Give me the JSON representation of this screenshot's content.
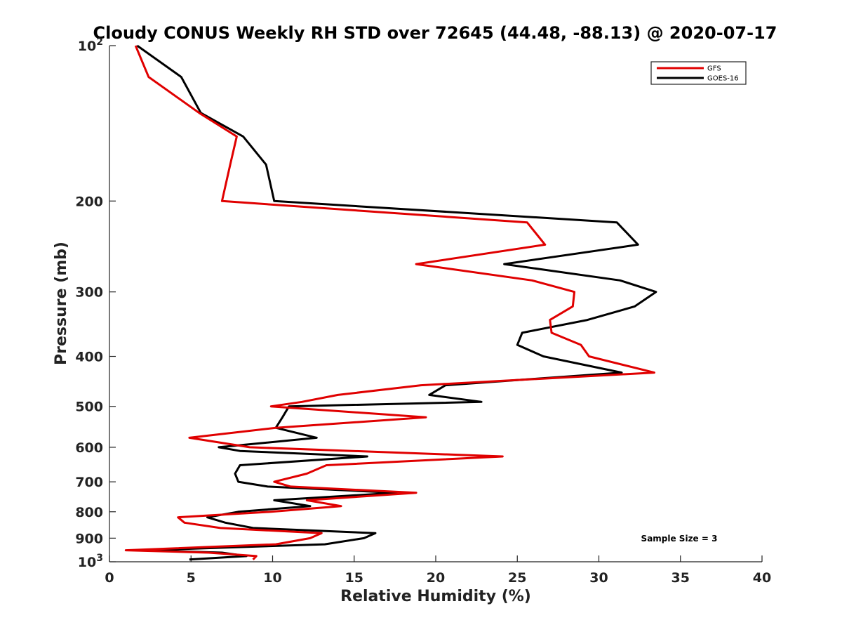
{
  "chart_data": {
    "type": "line",
    "title": "Cloudy CONUS Weekly RH STD over 72645 (44.48, -88.13) @ 2020-07-17",
    "xlabel": "Relative Humidity (%)",
    "ylabel": "Pressure (mb)",
    "xlim": [
      0,
      40
    ],
    "ylim": [
      100,
      1000
    ],
    "y_scale": "log",
    "y_reversed": true,
    "grid": false,
    "legend_position": "top-right",
    "x_ticks": [
      0,
      5,
      10,
      15,
      20,
      25,
      30,
      35,
      40
    ],
    "x_tick_labels": [
      "0",
      "5",
      "10",
      "15",
      "20",
      "25",
      "30",
      "35",
      "40"
    ],
    "y_ticks": [
      100,
      200,
      300,
      400,
      500,
      600,
      700,
      800,
      900,
      1000
    ],
    "y_tick_labels": [
      {
        "base": "10",
        "exp": "2"
      },
      {
        "base": "200",
        "exp": ""
      },
      {
        "base": "300",
        "exp": ""
      },
      {
        "base": "400",
        "exp": ""
      },
      {
        "base": "500",
        "exp": ""
      },
      {
        "base": "600",
        "exp": ""
      },
      {
        "base": "700",
        "exp": ""
      },
      {
        "base": "800",
        "exp": ""
      },
      {
        "base": "900",
        "exp": ""
      },
      {
        "base": "10",
        "exp": "3"
      }
    ],
    "annotation": "Sample Size = 3",
    "series": [
      {
        "name": "GFS",
        "color": "#e00000",
        "points": [
          [
            1.6,
            100
          ],
          [
            2.4,
            115
          ],
          [
            5.5,
            135
          ],
          [
            7.8,
            150
          ],
          [
            7.4,
            170
          ],
          [
            6.9,
            200
          ],
          [
            25.6,
            220
          ],
          [
            26.7,
            243
          ],
          [
            18.8,
            265
          ],
          [
            25.9,
            285
          ],
          [
            28.5,
            300
          ],
          [
            28.4,
            320
          ],
          [
            27.0,
            340
          ],
          [
            27.1,
            360
          ],
          [
            28.9,
            380
          ],
          [
            29.4,
            400
          ],
          [
            33.4,
            430
          ],
          [
            19.1,
            455
          ],
          [
            14.0,
            475
          ],
          [
            11.8,
            490
          ],
          [
            9.9,
            500
          ],
          [
            19.4,
            525
          ],
          [
            10.2,
            550
          ],
          [
            4.9,
            575
          ],
          [
            8.6,
            600
          ],
          [
            24.1,
            625
          ],
          [
            13.3,
            650
          ],
          [
            12.1,
            675
          ],
          [
            10.1,
            700
          ],
          [
            11.1,
            715
          ],
          [
            18.8,
            735
          ],
          [
            12.1,
            760
          ],
          [
            14.2,
            780
          ],
          [
            9.9,
            800
          ],
          [
            4.2,
            820
          ],
          [
            4.6,
            840
          ],
          [
            6.8,
            860
          ],
          [
            13.0,
            880
          ],
          [
            12.3,
            900
          ],
          [
            10.2,
            925
          ],
          [
            1.0,
            950
          ],
          [
            6.1,
            960
          ],
          [
            9.0,
            975
          ],
          [
            8.8,
            990
          ]
        ]
      },
      {
        "name": "GOES-16",
        "color": "#000000",
        "points": [
          [
            1.7,
            100
          ],
          [
            4.4,
            115
          ],
          [
            5.6,
            135
          ],
          [
            8.2,
            150
          ],
          [
            9.6,
            170
          ],
          [
            10.1,
            200
          ],
          [
            31.1,
            220
          ],
          [
            32.4,
            243
          ],
          [
            24.2,
            265
          ],
          [
            31.3,
            285
          ],
          [
            33.5,
            300
          ],
          [
            32.2,
            320
          ],
          [
            29.3,
            340
          ],
          [
            25.3,
            360
          ],
          [
            25.0,
            380
          ],
          [
            26.6,
            400
          ],
          [
            31.4,
            430
          ],
          [
            20.6,
            455
          ],
          [
            19.6,
            475
          ],
          [
            22.8,
            490
          ],
          [
            11.0,
            500
          ],
          [
            10.6,
            525
          ],
          [
            10.2,
            550
          ],
          [
            12.7,
            575
          ],
          [
            6.7,
            600
          ],
          [
            8.0,
            610
          ],
          [
            15.8,
            625
          ],
          [
            8.0,
            650
          ],
          [
            7.7,
            675
          ],
          [
            7.9,
            700
          ],
          [
            9.7,
            715
          ],
          [
            17.6,
            735
          ],
          [
            10.1,
            760
          ],
          [
            12.3,
            780
          ],
          [
            7.9,
            800
          ],
          [
            6.0,
            820
          ],
          [
            7.1,
            840
          ],
          [
            8.8,
            860
          ],
          [
            16.3,
            880
          ],
          [
            15.6,
            900
          ],
          [
            13.2,
            925
          ],
          [
            2.1,
            950
          ],
          [
            6.9,
            960
          ],
          [
            8.4,
            975
          ],
          [
            4.9,
            990
          ]
        ]
      }
    ]
  }
}
